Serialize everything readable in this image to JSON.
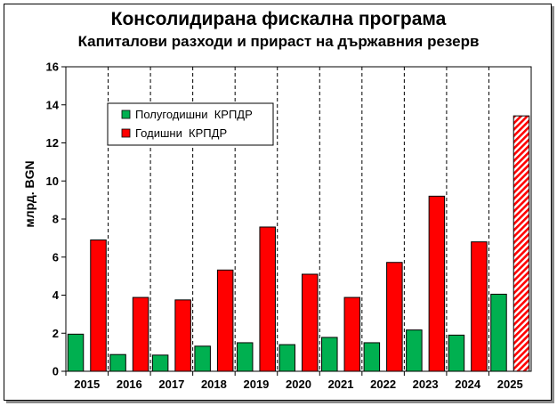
{
  "chart_data": {
    "type": "bar",
    "title": "Консолидирана фискална програма",
    "subtitle": "Капиталови разходи и прираст на държавния резерв",
    "ylabel": "млрд. BGN",
    "xlabel": "",
    "ylim": [
      0,
      16
    ],
    "yticks": [
      0,
      2,
      4,
      6,
      8,
      10,
      12,
      14,
      16
    ],
    "grid": "vertical dashed",
    "legend_position": "top-left",
    "categories": [
      "2015",
      "2016",
      "2017",
      "2018",
      "2019",
      "2020",
      "2021",
      "2022",
      "2023",
      "2024",
      "2025"
    ],
    "series": [
      {
        "name": "Полугодишни  КРПДР",
        "color": "#00b050",
        "values": [
          1.95,
          0.88,
          0.85,
          1.32,
          1.5,
          1.4,
          1.78,
          1.5,
          2.17,
          1.9,
          4.05
        ]
      },
      {
        "name": "Годишни  КРПДР",
        "color": "#ff0000",
        "values": [
          6.9,
          3.88,
          3.75,
          5.32,
          7.58,
          5.1,
          3.88,
          5.72,
          9.2,
          6.8,
          13.42
        ],
        "hatched_last": true
      }
    ]
  }
}
